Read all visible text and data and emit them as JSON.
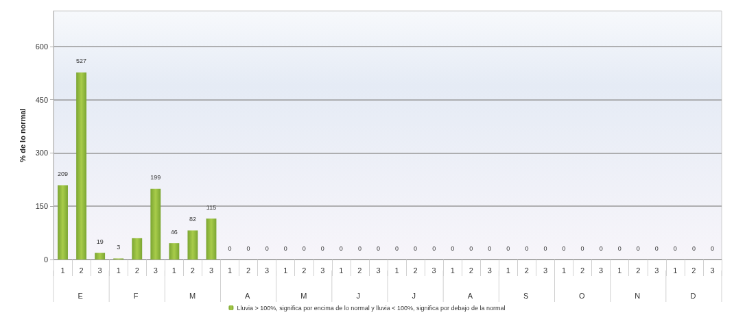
{
  "chart_data": {
    "type": "bar",
    "ylabel": "% de lo normal",
    "categories": [
      "1",
      "2",
      "3",
      "1",
      "2",
      "3",
      "1",
      "2",
      "3",
      "1",
      "2",
      "3",
      "1",
      "2",
      "3",
      "1",
      "2",
      "3",
      "1",
      "2",
      "3",
      "1",
      "2",
      "3",
      "1",
      "2",
      "3",
      "1",
      "2",
      "3",
      "1",
      "2",
      "3",
      "1",
      "2",
      "3"
    ],
    "series": [
      {
        "name": "Lluvia > 100%, significa por encima de lo normal y lluvia < 100%, significa por debajo de la normal",
        "color": "#7ba532",
        "values": [
          209,
          527,
          19,
          3,
          60,
          199,
          46,
          82,
          115,
          0,
          0,
          0,
          0,
          0,
          0,
          0,
          0,
          0,
          0,
          0,
          0,
          0,
          0,
          0,
          0,
          0,
          0,
          0,
          0,
          0,
          0,
          0,
          0,
          0,
          0,
          0
        ],
        "value_labels": [
          "209",
          "527",
          "19",
          "3",
          null,
          "199",
          "46",
          "82",
          "115",
          "0",
          "0",
          "0",
          "0",
          "0",
          "0",
          "0",
          "0",
          "0",
          "0",
          "0",
          "0",
          "0",
          "0",
          "0",
          "0",
          "0",
          "0",
          "0",
          "0",
          "0",
          "0",
          "0",
          "0",
          "0",
          "0",
          "0"
        ]
      }
    ],
    "annotations": [
      "E",
      "F",
      "M",
      "A",
      "M",
      "J",
      "J",
      "A",
      "S",
      "O",
      "N",
      "D"
    ],
    "ylim": [
      0,
      700
    ],
    "yticks": [
      0,
      150,
      300,
      450,
      600
    ],
    "grid": "y",
    "legend": "bottom"
  }
}
